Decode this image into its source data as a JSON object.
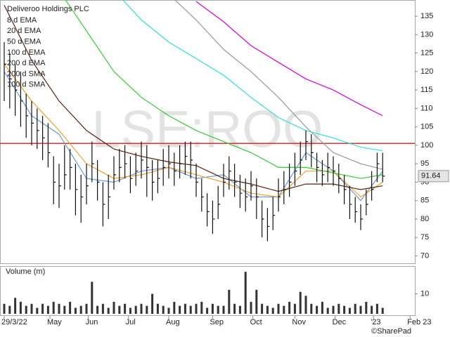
{
  "chart_data": {
    "type": "ohlc",
    "title": "Deliveroo Holdings PLC",
    "watermark": "LSE:ROO",
    "copyright": "©SharePad",
    "xlim": [
      0,
      224
    ],
    "xticks": [
      {
        "value": 0,
        "label": "29/3/22"
      },
      {
        "value": 25,
        "label": "May"
      },
      {
        "value": 46,
        "label": "Jun"
      },
      {
        "value": 68,
        "label": "Jul"
      },
      {
        "value": 90,
        "label": "Aug"
      },
      {
        "value": 114,
        "label": "Sep"
      },
      {
        "value": 136,
        "label": "Oct"
      },
      {
        "value": 159,
        "label": "Nov"
      },
      {
        "value": 181,
        "label": "Dec"
      },
      {
        "value": 202,
        "label": "'23"
      },
      {
        "value": 222,
        "label": "Feb 23"
      }
    ],
    "ylim": [
      68,
      139.4
    ],
    "yticks": [
      70,
      75,
      80,
      85,
      90,
      95,
      100,
      105,
      110,
      115,
      120,
      125,
      130,
      135
    ],
    "grid": false,
    "bar_color": "#111111",
    "hline": {
      "value": 100.5,
      "color": "#e03030"
    },
    "bars": {
      "x": [
        0,
        3,
        6,
        9,
        12,
        15,
        18,
        21,
        24,
        27,
        30,
        33,
        36,
        39,
        42,
        45,
        48,
        51,
        54,
        57,
        60,
        63,
        66,
        69,
        72,
        75,
        78,
        81,
        84,
        87,
        90,
        93,
        96,
        99,
        102,
        105,
        108,
        111,
        114,
        117,
        120,
        123,
        126,
        129,
        132,
        135,
        138,
        141,
        144,
        147,
        150,
        153,
        156,
        159,
        162,
        165,
        168,
        171,
        174,
        177,
        180,
        183,
        186,
        189,
        192,
        195,
        198,
        201,
        204,
        207
      ],
      "high": [
        128,
        125,
        122,
        120,
        114,
        112,
        110,
        108,
        106,
        97,
        95,
        100,
        99,
        95,
        92,
        95,
        101,
        96,
        90,
        92,
        97,
        99,
        100,
        97,
        98,
        101,
        100,
        96,
        96,
        99,
        100,
        98,
        100,
        101,
        101,
        95,
        91,
        87,
        85,
        89,
        95,
        97,
        95,
        92,
        91,
        93,
        91,
        85,
        83,
        86,
        91,
        93,
        95,
        98,
        101,
        104,
        103,
        98,
        96,
        98,
        97,
        95,
        92,
        89,
        86,
        84,
        88,
        93,
        98,
        98
      ],
      "low": [
        112,
        110,
        108,
        105,
        102,
        100,
        99,
        96,
        94,
        84,
        83,
        88,
        88,
        81,
        79,
        84,
        90,
        85,
        78,
        80,
        88,
        90,
        91,
        87,
        89,
        91,
        86,
        85,
        87,
        89,
        91,
        89,
        91,
        92,
        91,
        86,
        82,
        78,
        76,
        80,
        86,
        88,
        86,
        83,
        82,
        85,
        80,
        75,
        74,
        77,
        82,
        84,
        86,
        89,
        92,
        96,
        94,
        90,
        89,
        90,
        89,
        87,
        84,
        80,
        79,
        77,
        81,
        85,
        90,
        90
      ],
      "close": [
        122,
        118,
        115,
        112,
        108,
        106,
        104,
        102,
        98,
        90,
        89,
        92,
        94,
        88,
        86,
        89,
        95,
        90,
        84,
        86,
        92,
        94,
        95,
        91,
        93,
        96,
        94,
        90,
        91,
        94,
        95,
        93,
        95,
        97,
        96,
        90,
        86,
        82,
        80,
        84,
        90,
        93,
        90,
        87,
        86,
        89,
        86,
        80,
        78,
        81,
        86,
        88,
        90,
        93,
        96,
        101,
        98,
        94,
        92,
        94,
        93,
        91,
        88,
        84,
        82,
        80,
        84,
        88,
        95,
        91.64
      ]
    },
    "series": [
      {
        "name": "8 d EMA",
        "color": "#6a9bd8",
        "x": [
          0,
          15,
          30,
          45,
          60,
          75,
          90,
          105,
          120,
          135,
          150,
          165,
          180,
          195,
          207
        ],
        "values": [
          120,
          108,
          103,
          91,
          90,
          93,
          94,
          91,
          92,
          86,
          86,
          98,
          93,
          85,
          93
        ]
      },
      {
        "name": "20 d EMA",
        "color": "#f0a030",
        "x": [
          0,
          15,
          30,
          45,
          60,
          75,
          90,
          105,
          120,
          135,
          150,
          165,
          180,
          195,
          207
        ],
        "values": [
          122,
          112,
          104,
          95,
          91,
          92,
          94,
          92,
          90,
          87,
          86,
          93,
          93,
          86,
          90
        ]
      },
      {
        "name": "50 d EMA",
        "color": "#5a2010",
        "x": [
          0,
          15,
          30,
          45,
          60,
          75,
          90,
          105,
          120,
          135,
          150,
          165,
          180,
          195,
          207
        ],
        "values": [
          138,
          123,
          112,
          104,
          99,
          97,
          95.5,
          94.5,
          91,
          89.5,
          87.5,
          89.5,
          89.5,
          88,
          89
        ]
      },
      {
        "name": "100 d EMA",
        "color": "#33cc33",
        "x": [
          0,
          15,
          30,
          45,
          60,
          75,
          90,
          105,
          120,
          135,
          150,
          165,
          180,
          195,
          207
        ],
        "values": [
          null,
          null,
          142,
          131,
          120,
          113,
          108,
          104,
          101,
          98,
          94,
          94,
          92.5,
          91,
          92
        ]
      },
      {
        "name": "200 d EMA",
        "color": "#dd00dd",
        "x": [
          0,
          15,
          30,
          45,
          60,
          75,
          90,
          105,
          120,
          135,
          150,
          165,
          180,
          195,
          207
        ],
        "values": [
          null,
          null,
          null,
          null,
          null,
          null,
          null,
          139,
          133.5,
          127,
          122.5,
          118,
          115,
          111,
          108
        ]
      },
      {
        "name": "200 d SMA",
        "color": "#999999",
        "x": [
          0,
          15,
          30,
          45,
          60,
          75,
          90,
          105,
          120,
          135,
          150,
          165,
          180,
          195,
          207
        ],
        "values": [
          null,
          null,
          null,
          null,
          null,
          null,
          141,
          134,
          126,
          120,
          113,
          105,
          98,
          95,
          93.5
        ]
      },
      {
        "name": "100 d SMA",
        "color": "#33dddd",
        "x": [
          0,
          15,
          30,
          45,
          60,
          75,
          90,
          105,
          120,
          135,
          150,
          165,
          180,
          195,
          207
        ],
        "values": [
          null,
          null,
          null,
          null,
          142,
          134,
          128,
          123.5,
          119,
          113,
          107.5,
          104,
          102,
          99.5,
          98.5
        ]
      }
    ],
    "volume": {
      "label": "Volume (m)",
      "color": "#333333",
      "ylim": [
        0,
        23.5
      ],
      "yticks": [
        10
      ],
      "values": [
        5,
        4,
        8,
        6,
        4,
        5,
        3,
        5,
        4,
        6,
        5,
        4,
        6,
        3,
        4,
        5,
        16,
        4,
        5,
        3,
        6,
        4,
        5,
        3,
        4,
        5,
        4,
        10,
        5,
        4,
        3,
        6,
        4,
        5,
        4,
        5,
        6,
        3,
        5,
        4,
        4,
        12,
        5,
        4,
        21,
        6,
        12,
        5,
        4,
        3,
        5,
        4,
        6,
        5,
        11,
        9,
        5,
        4,
        6,
        3,
        4,
        5,
        4,
        3,
        5,
        4,
        6,
        4,
        5,
        3
      ]
    }
  }
}
